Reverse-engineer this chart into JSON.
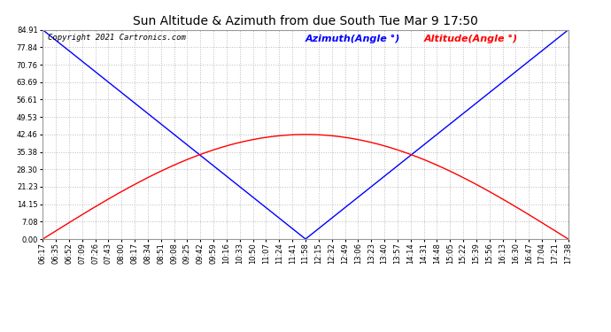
{
  "title": "Sun Altitude & Azimuth from due South Tue Mar 9 17:50",
  "copyright": "Copyright 2021 Cartronics.com",
  "legend_azimuth": "Azimuth(Angle °)",
  "legend_altitude": "Altitude(Angle °)",
  "yticks": [
    0.0,
    7.08,
    14.15,
    21.23,
    28.3,
    35.38,
    42.46,
    49.53,
    56.61,
    63.69,
    70.76,
    77.84,
    84.91
  ],
  "ymax": 84.91,
  "ymin": 0.0,
  "time_labels": [
    "06:17",
    "06:35",
    "06:52",
    "07:09",
    "07:26",
    "07:43",
    "08:00",
    "08:17",
    "08:34",
    "08:51",
    "09:08",
    "09:25",
    "09:42",
    "09:59",
    "10:16",
    "10:33",
    "10:50",
    "11:07",
    "11:24",
    "11:41",
    "11:58",
    "12:15",
    "12:32",
    "12:49",
    "13:06",
    "13:23",
    "13:40",
    "13:57",
    "14:14",
    "14:31",
    "14:48",
    "15:05",
    "15:22",
    "15:39",
    "15:56",
    "16:13",
    "16:30",
    "16:47",
    "17:04",
    "17:21",
    "17:38"
  ],
  "azimuth_color": "#0000FF",
  "altitude_color": "#FF0000",
  "grid_color": "#BBBBBB",
  "background_color": "#FFFFFF",
  "title_fontsize": 10,
  "copyright_fontsize": 6.5,
  "legend_fontsize": 8,
  "tick_fontsize": 6,
  "figwidth": 6.9,
  "figheight": 3.75,
  "dpi": 100
}
